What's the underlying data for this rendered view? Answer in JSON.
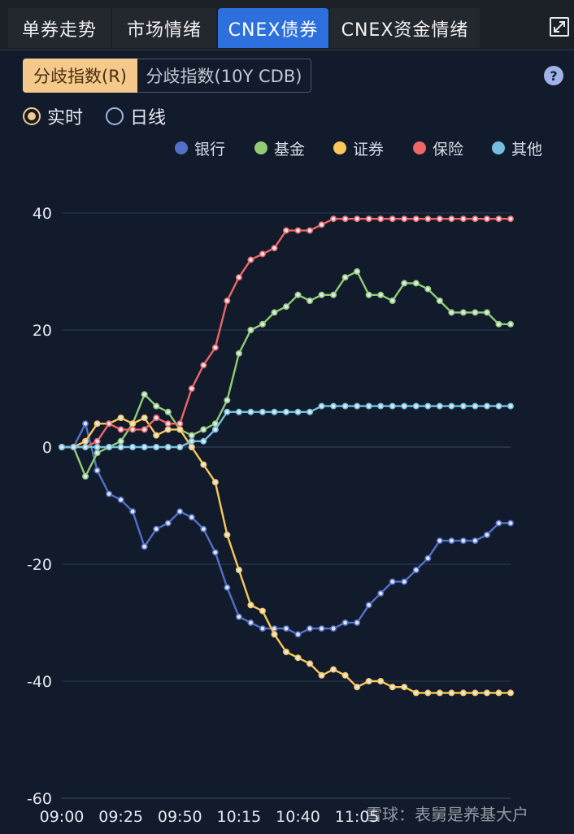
{
  "tabs": [
    {
      "label": "单券走势"
    },
    {
      "label": "市场情绪"
    },
    {
      "label": "CNEX债券"
    },
    {
      "label": "CNEX资金情绪"
    }
  ],
  "index_buttons": [
    {
      "label": "分歧指数(R)"
    },
    {
      "label": "分歧指数(10Y CDB)"
    }
  ],
  "help_label": "?",
  "modes": [
    {
      "label": "实时"
    },
    {
      "label": "日线"
    }
  ],
  "watermark": "雪球：表舅是养基大户",
  "colors": {
    "accent": "#2d6fdc",
    "active_button": "#f5c88b"
  },
  "chart_data": {
    "type": "line",
    "ylim": [
      -60,
      40
    ],
    "yticks": [
      "40",
      "20",
      "0",
      "-20",
      "-40",
      "-60"
    ],
    "yticks_values": [
      40,
      20,
      0,
      -20,
      -40,
      -60
    ],
    "x_tick_labels": [
      "09:00",
      "09:25",
      "09:50",
      "10:15",
      "10:40",
      "11:05"
    ],
    "x_tick_index": [
      0,
      5,
      10,
      15,
      20,
      25
    ],
    "legend_position": "top-right",
    "grid": true,
    "series": [
      {
        "name": "银行",
        "color": "#5470c6",
        "values": [
          0,
          0,
          4,
          -4,
          -8,
          -9,
          -11,
          -17,
          -14,
          -13,
          -11,
          -12,
          -14,
          -18,
          -24,
          -29,
          -30,
          -31,
          -31,
          -31,
          -32,
          -31,
          -31,
          -31,
          -30,
          -30,
          -27,
          -25,
          -23,
          -23,
          -21,
          -19,
          -16,
          -16,
          -16,
          -16,
          -15,
          -13,
          -13
        ]
      },
      {
        "name": "基金",
        "color": "#91cc75",
        "values": [
          0,
          0,
          -5,
          -1,
          0,
          1,
          4,
          9,
          7,
          6,
          3,
          2,
          3,
          4,
          8,
          16,
          20,
          21,
          23,
          24,
          26,
          25,
          26,
          26,
          29,
          30,
          26,
          26,
          25,
          28,
          28,
          27,
          25,
          23,
          23,
          23,
          23,
          21,
          21
        ]
      },
      {
        "name": "证券",
        "color": "#fac858",
        "values": [
          0,
          0,
          1,
          4,
          4,
          5,
          4,
          5,
          2,
          3,
          3,
          0,
          -3,
          -6,
          -15,
          -21,
          -27,
          -28,
          -32,
          -35,
          -36,
          -37,
          -39,
          -38,
          -39,
          -41,
          -40,
          -40,
          -41,
          -41,
          -42,
          -42,
          -42,
          -42,
          -42,
          -42,
          -42,
          -42,
          -42
        ]
      },
      {
        "name": "保险",
        "color": "#ee6666",
        "values": [
          0,
          0,
          0,
          1,
          4,
          3,
          3,
          3,
          5,
          4,
          4,
          10,
          14,
          17,
          25,
          29,
          32,
          33,
          34,
          37,
          37,
          37,
          38,
          39,
          39,
          39,
          39,
          39,
          39,
          39,
          39,
          39,
          39,
          39,
          39,
          39,
          39,
          39,
          39
        ]
      },
      {
        "name": "其他",
        "color": "#73c0de",
        "values": [
          0,
          0,
          0,
          0,
          0,
          0,
          0,
          0,
          0,
          0,
          0,
          1,
          1,
          3,
          6,
          6,
          6,
          6,
          6,
          6,
          6,
          6,
          7,
          7,
          7,
          7,
          7,
          7,
          7,
          7,
          7,
          7,
          7,
          7,
          7,
          7,
          7,
          7,
          7
        ]
      }
    ]
  }
}
